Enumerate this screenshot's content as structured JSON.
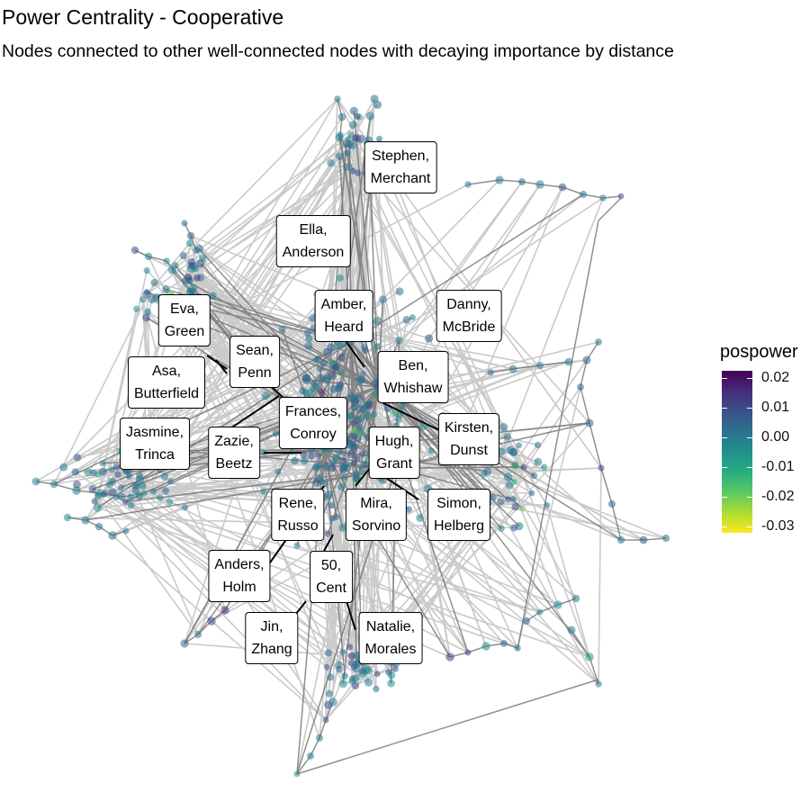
{
  "title": "Power Centrality - Cooperative",
  "subtitle": "Nodes connected to other well-connected nodes with decaying importance by distance",
  "legend": {
    "title": "pospower",
    "ticks": [
      "0.02",
      "0.01",
      "0.00",
      "-0.01",
      "-0.02",
      "-0.03"
    ]
  },
  "labels": [
    {
      "line1": "Stephen,",
      "line2": "Merchant"
    },
    {
      "line1": "Ella,",
      "line2": "Anderson"
    },
    {
      "line1": "Amber,",
      "line2": "Heard"
    },
    {
      "line1": "Danny,",
      "line2": "McBride"
    },
    {
      "line1": "Eva,",
      "line2": "Green"
    },
    {
      "line1": "Sean,",
      "line2": "Penn"
    },
    {
      "line1": "Asa,",
      "line2": "Butterfield"
    },
    {
      "line1": "Ben,",
      "line2": "Whishaw"
    },
    {
      "line1": "Frances,",
      "line2": "Conroy"
    },
    {
      "line1": "Kirsten,",
      "line2": "Dunst"
    },
    {
      "line1": "Jasmine,",
      "line2": "Trinca"
    },
    {
      "line1": "Zazie,",
      "line2": "Beetz"
    },
    {
      "line1": "Hugh,",
      "line2": "Grant"
    },
    {
      "line1": "Rene,",
      "line2": "Russo"
    },
    {
      "line1": "Mira,",
      "line2": "Sorvino"
    },
    {
      "line1": "Simon,",
      "line2": "Helberg"
    },
    {
      "line1": "Anders,",
      "line2": "Holm"
    },
    {
      "line1": "50,",
      "line2": "Cent"
    },
    {
      "line1": "Jin,",
      "line2": "Zhang"
    },
    {
      "line1": "Natalie,",
      "line2": "Morales"
    }
  ]
}
